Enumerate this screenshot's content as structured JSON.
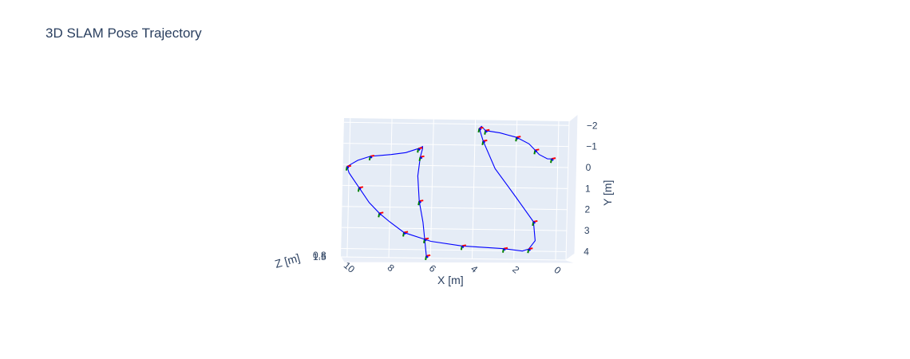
{
  "chart_data": {
    "type": "line",
    "title": "3D SLAM Pose Trajectory",
    "xlabel": "X [m]",
    "ylabel": "Y [m]",
    "zlabel": "Z [m]",
    "xlim": [
      10.3,
      -0.5
    ],
    "ylim": [
      -2.2,
      4.4
    ],
    "x_ticks": [
      "10",
      "8",
      "6",
      "4",
      "2",
      "0"
    ],
    "y_ticks": [
      "−2",
      "−1",
      "0",
      "1",
      "2",
      "3",
      "4"
    ],
    "z_ticks": [
      "0.8",
      "1.5"
    ],
    "grid": true,
    "series": [
      {
        "color": "#0000ff",
        "x": [
          0.3,
          0.5,
          0.9,
          1.1,
          1.4,
          2.0,
          2.8,
          3.5,
          3.7,
          3.8,
          3.6,
          3.0,
          2.0,
          1.1,
          1.0,
          1.3,
          1.6,
          2.5,
          4.5,
          6.0,
          7.3,
          8.0,
          8.5,
          9.0,
          9.5,
          10.0,
          10.1,
          9.6,
          9.0,
          8.0,
          7.3,
          6.7,
          6.5,
          6.5,
          6.6,
          6.7,
          6.6,
          6.4,
          6.3,
          6.2
        ],
        "y": [
          -0.4,
          -0.4,
          -0.6,
          -0.8,
          -1.1,
          -1.4,
          -1.6,
          -1.7,
          -1.9,
          -1.8,
          -1.2,
          0.1,
          1.4,
          2.6,
          3.5,
          3.9,
          4.0,
          3.9,
          3.8,
          3.6,
          3.2,
          2.7,
          2.3,
          1.8,
          1.1,
          0.4,
          0.1,
          -0.2,
          -0.4,
          -0.5,
          -0.6,
          -0.8,
          -0.9,
          -0.8,
          -0.4,
          0.5,
          1.7,
          2.7,
          3.5,
          4.3
        ],
        "z": []
      }
    ]
  }
}
